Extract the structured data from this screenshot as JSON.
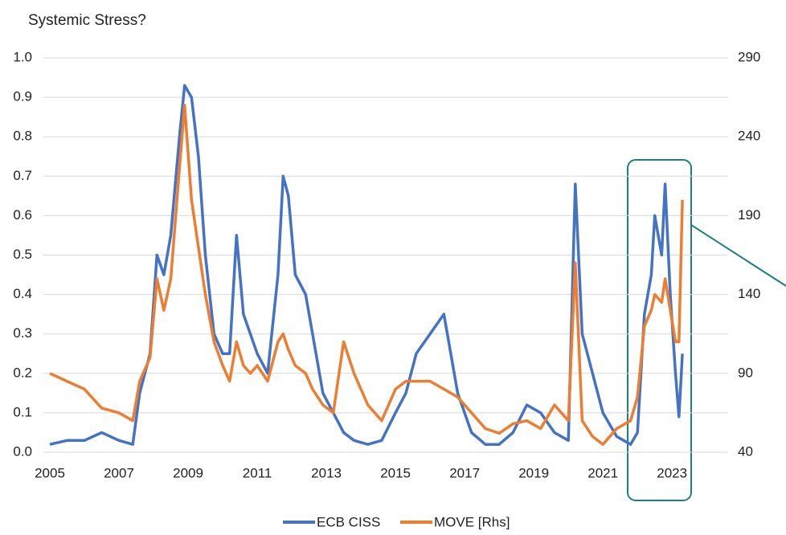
{
  "chart_data": {
    "type": "line",
    "title": "Systemic Stress?",
    "x": [
      2005.0,
      2005.5,
      2006.0,
      2006.5,
      2007.0,
      2007.4,
      2007.6,
      2007.9,
      2008.1,
      2008.3,
      2008.5,
      2008.75,
      2008.9,
      2009.1,
      2009.3,
      2009.5,
      2009.75,
      2010.0,
      2010.2,
      2010.4,
      2010.6,
      2010.8,
      2011.0,
      2011.3,
      2011.6,
      2011.75,
      2011.9,
      2012.1,
      2012.4,
      2012.6,
      2012.9,
      2013.2,
      2013.5,
      2013.8,
      2014.2,
      2014.6,
      2015.0,
      2015.3,
      2015.6,
      2016.0,
      2016.4,
      2016.8,
      2017.2,
      2017.6,
      2018.0,
      2018.4,
      2018.8,
      2019.2,
      2019.6,
      2020.0,
      2020.2,
      2020.4,
      2020.7,
      2021.0,
      2021.4,
      2021.8,
      2022.0,
      2022.2,
      2022.4,
      2022.5,
      2022.7,
      2022.8,
      2022.95,
      2023.1,
      2023.2,
      2023.3
    ],
    "series": [
      {
        "name": "ECB CISS",
        "color": "#4472c4",
        "values": [
          0.02,
          0.03,
          0.03,
          0.05,
          0.03,
          0.02,
          0.15,
          0.25,
          0.5,
          0.45,
          0.55,
          0.8,
          0.93,
          0.9,
          0.75,
          0.5,
          0.3,
          0.25,
          0.25,
          0.55,
          0.35,
          0.3,
          0.25,
          0.2,
          0.45,
          0.7,
          0.65,
          0.45,
          0.4,
          0.3,
          0.15,
          0.1,
          0.05,
          0.03,
          0.02,
          0.03,
          0.1,
          0.15,
          0.25,
          0.3,
          0.35,
          0.15,
          0.05,
          0.02,
          0.02,
          0.05,
          0.12,
          0.1,
          0.05,
          0.03,
          0.68,
          0.3,
          0.2,
          0.1,
          0.04,
          0.02,
          0.05,
          0.35,
          0.45,
          0.6,
          0.5,
          0.68,
          0.4,
          0.2,
          0.09,
          0.25
        ]
      },
      {
        "name": "MOVE [Rhs]",
        "color": "#ed7d31",
        "axis": "y2",
        "values": [
          90,
          85,
          80,
          68,
          65,
          60,
          85,
          100,
          150,
          130,
          150,
          220,
          260,
          200,
          170,
          140,
          110,
          95,
          85,
          110,
          95,
          90,
          95,
          85,
          110,
          115,
          105,
          95,
          90,
          80,
          70,
          65,
          110,
          90,
          70,
          60,
          80,
          85,
          85,
          85,
          80,
          75,
          65,
          55,
          52,
          58,
          60,
          55,
          70,
          60,
          160,
          60,
          50,
          45,
          55,
          60,
          75,
          120,
          130,
          140,
          135,
          150,
          130,
          110,
          110,
          200
        ]
      }
    ],
    "xlim": [
      2005,
      2024.6
    ],
    "xticks": [
      2005,
      2007,
      2009,
      2011,
      2013,
      2015,
      2017,
      2019,
      2021,
      2023
    ],
    "ylim": [
      0,
      1
    ],
    "yticks": [
      {
        "value": 0,
        "label": "0.0"
      },
      0.1,
      0.2,
      0.3,
      0.4,
      0.5,
      0.6,
      0.7,
      0.8,
      0.9,
      {
        "value": 1,
        "label": "1.0"
      }
    ],
    "y2lim": [
      40,
      290
    ],
    "y2ticks": [
      40,
      90,
      140,
      190,
      240,
      290
    ],
    "grid": true,
    "legend": "bottom"
  }
}
